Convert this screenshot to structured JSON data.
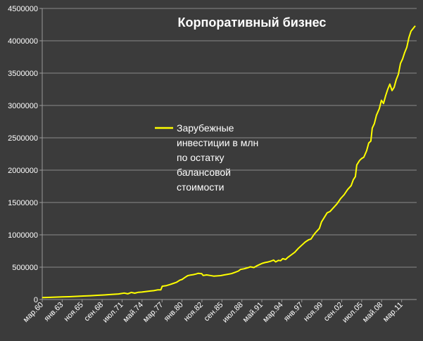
{
  "chart_data": {
    "type": "line",
    "title": "Корпоративный бизнес",
    "xlabel": "",
    "ylabel": "",
    "ylim": [
      0,
      4500000
    ],
    "yticks": [
      0,
      500000,
      1000000,
      1500000,
      2000000,
      2500000,
      3000000,
      3500000,
      4000000,
      4500000
    ],
    "ytick_labels": [
      "0",
      "500000",
      "1000000",
      "1500000",
      "2000000",
      "2500000",
      "3000000",
      "3500000",
      "4000000",
      "4500000"
    ],
    "xlim": [
      1960.17,
      2013.3
    ],
    "xticks": [
      {
        "x": 1960.17,
        "label": "мар.60"
      },
      {
        "x": 1963.0,
        "label": "янв.63"
      },
      {
        "x": 1965.83,
        "label": "ноя.65"
      },
      {
        "x": 1968.67,
        "label": "сен.68"
      },
      {
        "x": 1971.5,
        "label": "июл.71"
      },
      {
        "x": 1974.33,
        "label": "май.74"
      },
      {
        "x": 1977.17,
        "label": "мар.77"
      },
      {
        "x": 1980.0,
        "label": "янв.80"
      },
      {
        "x": 1982.83,
        "label": "ноя.82"
      },
      {
        "x": 1985.67,
        "label": "сен.85"
      },
      {
        "x": 1988.5,
        "label": "июл.88"
      },
      {
        "x": 1991.33,
        "label": "май.91"
      },
      {
        "x": 1994.17,
        "label": "мар.94"
      },
      {
        "x": 1997.0,
        "label": "янв.97"
      },
      {
        "x": 1999.83,
        "label": "ноя.99"
      },
      {
        "x": 2002.67,
        "label": "сен.02"
      },
      {
        "x": 2005.5,
        "label": "июл.05"
      },
      {
        "x": 2008.33,
        "label": "май.08"
      },
      {
        "x": 2011.17,
        "label": "мар.11"
      }
    ],
    "grid": true,
    "legend_position": "center",
    "series": [
      {
        "name": "Зарубежные инвестиции в млн по остатку балансовой стоимости",
        "color": "#ffff00",
        "points": [
          [
            1960.17,
            30000
          ],
          [
            1961.0,
            33000
          ],
          [
            1962.0,
            37000
          ],
          [
            1963.0,
            40000
          ],
          [
            1964.0,
            44000
          ],
          [
            1965.0,
            49000
          ],
          [
            1966.0,
            54000
          ],
          [
            1967.0,
            59000
          ],
          [
            1968.0,
            65000
          ],
          [
            1969.0,
            71000
          ],
          [
            1970.0,
            78000
          ],
          [
            1971.0,
            86000
          ],
          [
            1971.8,
            100000
          ],
          [
            1972.3,
            88000
          ],
          [
            1972.8,
            110000
          ],
          [
            1973.3,
            98000
          ],
          [
            1973.8,
            112000
          ],
          [
            1974.3,
            115000
          ],
          [
            1975.0,
            125000
          ],
          [
            1975.5,
            132000
          ],
          [
            1976.0,
            137000
          ],
          [
            1976.6,
            150000
          ],
          [
            1977.0,
            150000
          ],
          [
            1977.2,
            205000
          ],
          [
            1977.8,
            215000
          ],
          [
            1978.3,
            232000
          ],
          [
            1978.8,
            250000
          ],
          [
            1979.2,
            265000
          ],
          [
            1979.7,
            300000
          ],
          [
            1980.0,
            310000
          ],
          [
            1980.4,
            340000
          ],
          [
            1980.8,
            368000
          ],
          [
            1981.2,
            378000
          ],
          [
            1981.6,
            385000
          ],
          [
            1982.0,
            395000
          ],
          [
            1982.3,
            405000
          ],
          [
            1982.8,
            400000
          ],
          [
            1983.0,
            372000
          ],
          [
            1983.5,
            380000
          ],
          [
            1984.0,
            372000
          ],
          [
            1984.5,
            362000
          ],
          [
            1985.0,
            365000
          ],
          [
            1985.5,
            370000
          ],
          [
            1986.0,
            380000
          ],
          [
            1986.5,
            390000
          ],
          [
            1987.0,
            400000
          ],
          [
            1987.5,
            420000
          ],
          [
            1988.0,
            440000
          ],
          [
            1988.3,
            465000
          ],
          [
            1988.8,
            475000
          ],
          [
            1989.3,
            490000
          ],
          [
            1989.7,
            505000
          ],
          [
            1990.2,
            495000
          ],
          [
            1990.6,
            520000
          ],
          [
            1991.0,
            540000
          ],
          [
            1991.4,
            560000
          ],
          [
            1991.8,
            572000
          ],
          [
            1992.2,
            580000
          ],
          [
            1992.6,
            592000
          ],
          [
            1993.0,
            610000
          ],
          [
            1993.3,
            582000
          ],
          [
            1993.7,
            605000
          ],
          [
            1994.0,
            600000
          ],
          [
            1994.3,
            632000
          ],
          [
            1994.7,
            620000
          ],
          [
            1995.0,
            650000
          ],
          [
            1995.5,
            690000
          ],
          [
            1996.0,
            730000
          ],
          [
            1996.5,
            790000
          ],
          [
            1997.0,
            840000
          ],
          [
            1997.5,
            890000
          ],
          [
            1998.0,
            925000
          ],
          [
            1998.3,
            935000
          ],
          [
            1998.7,
            1000000
          ],
          [
            1999.0,
            1040000
          ],
          [
            1999.5,
            1100000
          ],
          [
            1999.8,
            1200000
          ],
          [
            2000.2,
            1270000
          ],
          [
            2000.6,
            1340000
          ],
          [
            2001.0,
            1360000
          ],
          [
            2001.5,
            1420000
          ],
          [
            2002.0,
            1480000
          ],
          [
            2002.5,
            1560000
          ],
          [
            2003.0,
            1620000
          ],
          [
            2003.5,
            1700000
          ],
          [
            2004.0,
            1760000
          ],
          [
            2004.3,
            1850000
          ],
          [
            2004.6,
            1900000
          ],
          [
            2004.8,
            2080000
          ],
          [
            2005.2,
            2150000
          ],
          [
            2005.5,
            2180000
          ],
          [
            2005.8,
            2200000
          ],
          [
            2006.2,
            2300000
          ],
          [
            2006.5,
            2420000
          ],
          [
            2006.8,
            2450000
          ],
          [
            2007.0,
            2650000
          ],
          [
            2007.3,
            2720000
          ],
          [
            2007.6,
            2850000
          ],
          [
            2008.0,
            2950000
          ],
          [
            2008.3,
            3080000
          ],
          [
            2008.6,
            3030000
          ],
          [
            2008.9,
            3150000
          ],
          [
            2009.2,
            3250000
          ],
          [
            2009.5,
            3330000
          ],
          [
            2009.8,
            3230000
          ],
          [
            2010.1,
            3280000
          ],
          [
            2010.4,
            3400000
          ],
          [
            2010.7,
            3480000
          ],
          [
            2011.0,
            3650000
          ],
          [
            2011.3,
            3720000
          ],
          [
            2011.6,
            3820000
          ],
          [
            2011.9,
            3900000
          ],
          [
            2012.2,
            4050000
          ],
          [
            2012.5,
            4150000
          ],
          [
            2012.8,
            4190000
          ],
          [
            2013.1,
            4230000
          ]
        ]
      }
    ]
  }
}
